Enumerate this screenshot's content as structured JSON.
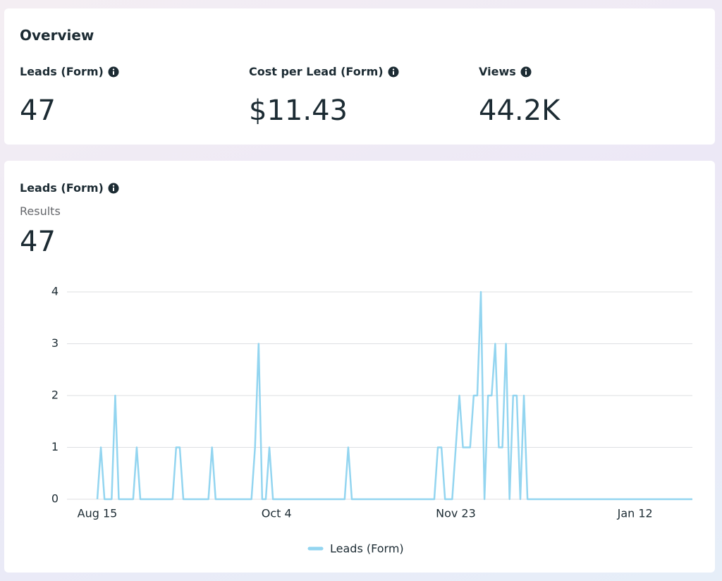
{
  "overview": {
    "title": "Overview",
    "metrics": [
      {
        "label": "Leads (Form)",
        "value": "47"
      },
      {
        "label": "Cost per Lead (Form)",
        "value": "$11.43"
      },
      {
        "label": "Views",
        "value": "44.2K"
      }
    ]
  },
  "chart_card": {
    "title": "Leads (Form)",
    "subtitle": "Results",
    "total": "47"
  },
  "chart_data": {
    "type": "line",
    "categories": [
      "Aug 15",
      null,
      null,
      null,
      null,
      null,
      null,
      null,
      null,
      null,
      null,
      null,
      null,
      null,
      null,
      null,
      null,
      null,
      null,
      null,
      null,
      null,
      null,
      null,
      null,
      null,
      null,
      null,
      null,
      null,
      null,
      null,
      null,
      null,
      null,
      null,
      null,
      null,
      null,
      null,
      null,
      null,
      null,
      null,
      null,
      null,
      null,
      null,
      null,
      null,
      "Oct 4",
      null,
      null,
      null,
      null,
      null,
      null,
      null,
      null,
      null,
      null,
      null,
      null,
      null,
      null,
      null,
      null,
      null,
      null,
      null,
      null,
      null,
      null,
      null,
      null,
      null,
      null,
      null,
      null,
      null,
      null,
      null,
      null,
      null,
      null,
      null,
      null,
      null,
      null,
      null,
      null,
      null,
      null,
      null,
      null,
      null,
      null,
      null,
      null,
      null,
      "Nov 23",
      null,
      null,
      null,
      null,
      null,
      null,
      null,
      null,
      null,
      null,
      null,
      null,
      null,
      null,
      null,
      null,
      null,
      null,
      null,
      null,
      null,
      null,
      null,
      null,
      null,
      null,
      null,
      null,
      null,
      null,
      null,
      null,
      null,
      null,
      null,
      null,
      null,
      null,
      null,
      null,
      null,
      null,
      null,
      null,
      null,
      null,
      null,
      null,
      null,
      "Jan 12",
      null,
      null,
      null,
      null,
      null,
      null,
      null,
      null,
      null,
      null,
      null,
      null,
      null,
      null,
      null,
      null
    ],
    "series": [
      {
        "name": "Leads (Form)",
        "color": "#93d5f0",
        "values": [
          0,
          1,
          0,
          0,
          0,
          2,
          0,
          0,
          0,
          0,
          0,
          1,
          0,
          0,
          0,
          0,
          0,
          0,
          0,
          0,
          0,
          0,
          1,
          1,
          0,
          0,
          0,
          0,
          0,
          0,
          0,
          0,
          1,
          0,
          0,
          0,
          0,
          0,
          0,
          0,
          0,
          0,
          0,
          0,
          1,
          3,
          0,
          0,
          1,
          0,
          0,
          0,
          0,
          0,
          0,
          0,
          0,
          0,
          0,
          0,
          0,
          0,
          0,
          0,
          0,
          0,
          0,
          0,
          0,
          0,
          1,
          0,
          0,
          0,
          0,
          0,
          0,
          0,
          0,
          0,
          0,
          0,
          0,
          0,
          0,
          0,
          0,
          0,
          0,
          0,
          0,
          0,
          0,
          0,
          0,
          1,
          1,
          0,
          0,
          0,
          1,
          2,
          1,
          1,
          1,
          2,
          2,
          4,
          0,
          2,
          2,
          3,
          1,
          1,
          3,
          0,
          2,
          2,
          0,
          2,
          0,
          0,
          0,
          0,
          0,
          0,
          0,
          0,
          0,
          0,
          0,
          0,
          0,
          0,
          0,
          0,
          0,
          0,
          0,
          0,
          0,
          0,
          0,
          0,
          0,
          0,
          0,
          0,
          0,
          0,
          0,
          0,
          0,
          0,
          0,
          0,
          0,
          0,
          0,
          0,
          0,
          0,
          0,
          0,
          0,
          0,
          0
        ]
      }
    ],
    "ylim": [
      0,
      4
    ],
    "yticks": [
      0,
      1,
      2,
      3,
      4
    ],
    "grid": true,
    "legend": "bottom"
  }
}
